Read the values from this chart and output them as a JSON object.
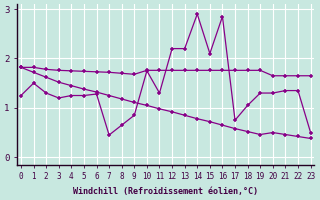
{
  "xlabel": "Windchill (Refroidissement éolien,°C)",
  "background_color": "#c8e8e0",
  "grid_color": "#b0d8d0",
  "line_color": "#880088",
  "spine_color": "#440044",
  "x": [
    0,
    1,
    2,
    3,
    4,
    5,
    6,
    7,
    8,
    9,
    10,
    11,
    12,
    13,
    14,
    15,
    16,
    17,
    18,
    19,
    20,
    21,
    22,
    23
  ],
  "series1": [
    1.25,
    1.5,
    1.3,
    1.2,
    1.25,
    1.25,
    1.28,
    0.45,
    0.65,
    0.85,
    1.75,
    1.3,
    2.2,
    2.2,
    2.9,
    2.1,
    2.85,
    0.75,
    1.05,
    1.3,
    1.3,
    1.35,
    1.35,
    0.5
  ],
  "series2": [
    1.82,
    1.82,
    1.78,
    1.76,
    1.75,
    1.74,
    1.73,
    1.72,
    1.7,
    1.68,
    1.76,
    1.76,
    1.76,
    1.76,
    1.76,
    1.76,
    1.76,
    1.76,
    1.76,
    1.76,
    1.65,
    1.65,
    1.65,
    1.65
  ],
  "series3": [
    1.82,
    1.72,
    1.62,
    1.52,
    1.45,
    1.38,
    1.32,
    1.25,
    1.18,
    1.11,
    1.05,
    0.98,
    0.92,
    0.85,
    0.78,
    0.72,
    0.65,
    0.58,
    0.52,
    0.46,
    0.5,
    0.46,
    0.42,
    0.38
  ],
  "ylim": [
    0,
    3
  ],
  "xlim": [
    -0.3,
    23.3
  ],
  "yticks": [
    0,
    1,
    2,
    3
  ],
  "xticks": [
    0,
    1,
    2,
    3,
    4,
    5,
    6,
    7,
    8,
    9,
    10,
    11,
    12,
    13,
    14,
    15,
    16,
    17,
    18,
    19,
    20,
    21,
    22,
    23
  ],
  "tick_fontsize": 5.5,
  "xlabel_fontsize": 6.0,
  "ylabel_fontsize": 6.5
}
